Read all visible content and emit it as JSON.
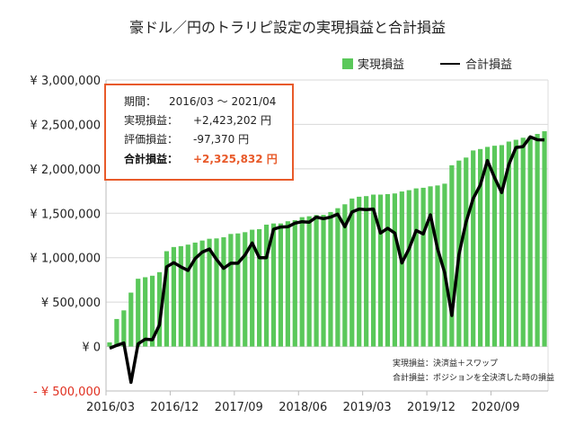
{
  "chart_data": {
    "type": "bar+line",
    "title": "豪ドル／円のトラリピ設定の実現損益と合計損益",
    "legend": {
      "placement": "top-right"
    },
    "series": [
      {
        "name": "実現損益",
        "type": "bar",
        "color": "#5ac85a",
        "values": [
          47000,
          310000,
          407000,
          607000,
          763000,
          780000,
          797000,
          837000,
          1073000,
          1120000,
          1130000,
          1147000,
          1170000,
          1193000,
          1213000,
          1217000,
          1230000,
          1267000,
          1273000,
          1287000,
          1315000,
          1321000,
          1372000,
          1385000,
          1385000,
          1410000,
          1422000,
          1456000,
          1466000,
          1480000,
          1482000,
          1514000,
          1557000,
          1601000,
          1666000,
          1686000,
          1693000,
          1710000,
          1710000,
          1716000,
          1723000,
          1745000,
          1760000,
          1780000,
          1787000,
          1803000,
          1813000,
          1833000,
          2040000,
          2093000,
          2127000,
          2207000,
          2223000,
          2247000,
          2260000,
          2267000,
          2307000,
          2327000,
          2350000,
          2367000,
          2393000,
          2423202
        ]
      },
      {
        "name": "合計損益",
        "type": "line",
        "color": "#000000",
        "values": [
          -20000,
          13000,
          40000,
          -403000,
          30000,
          83000,
          77000,
          243000,
          897000,
          943000,
          897000,
          857000,
          990000,
          1063000,
          1097000,
          980000,
          880000,
          937000,
          937000,
          1030000,
          1165000,
          1000000,
          1000000,
          1321000,
          1345000,
          1348000,
          1389000,
          1405000,
          1400000,
          1456000,
          1439000,
          1456000,
          1490000,
          1348000,
          1514000,
          1547000,
          1540000,
          1547000,
          1277000,
          1331000,
          1277000,
          940000,
          1100000,
          1307000,
          1267000,
          1483000,
          1100000,
          833000,
          350000,
          1033000,
          1400000,
          1667000,
          1817000,
          2093000,
          1900000,
          1733000,
          2050000,
          2240000,
          2250000,
          2360000,
          2327000,
          2325832
        ]
      }
    ],
    "x_start": "2016/03",
    "x_end": "2021/04",
    "x_tick_labels": [
      "2016/03",
      "2016/12",
      "2017/09",
      "2018/06",
      "2019/03",
      "2019/12",
      "2020/09"
    ],
    "y_tick_labels": [
      "¥ 3,000,000",
      "¥ 2,500,000",
      "¥ 2,000,000",
      "¥ 1,500,000",
      "¥ 1,000,000",
      "¥ 500,000",
      "¥ 0",
      "- ¥ 500,000"
    ],
    "y_ticks": [
      3000000,
      2500000,
      2000000,
      1500000,
      1000000,
      500000,
      0,
      -500000
    ],
    "ylim": [
      -500000,
      3000000
    ],
    "grid": true,
    "negative_label_color": "#e03020"
  },
  "summary_box": {
    "period_label": "期間：",
    "period_value": "2016/03 ～ 2021/04",
    "realized_label": "実現損益：",
    "realized_value": "+2,423,202 円",
    "unrealized_label": "評価損益：",
    "unrealized_value": "-97,370 円",
    "total_label": "合計損益：",
    "total_value": "+2,325,832 円",
    "border_color": "#e85a2a",
    "total_color": "#e85a2a"
  },
  "notes": [
    "実現損益：決済益＋スワップ",
    "合計損益：ポジションを全決済した時の損益"
  ]
}
